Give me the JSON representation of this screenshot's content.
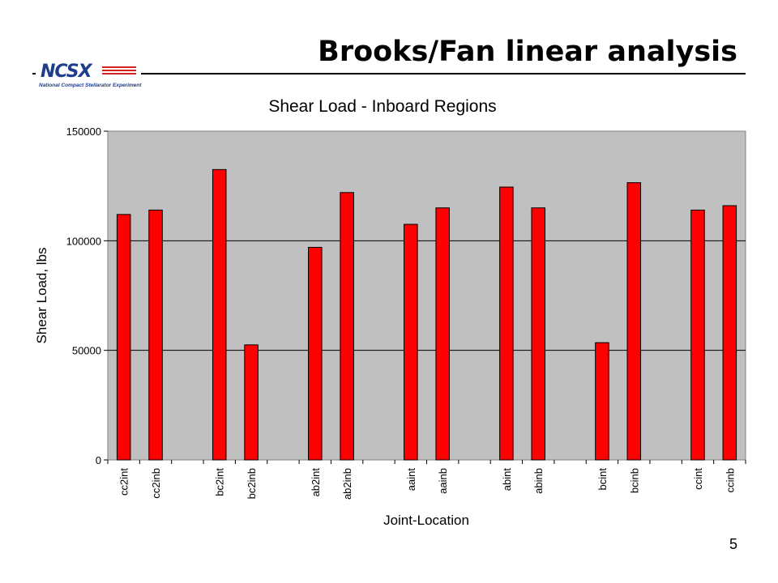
{
  "slide": {
    "title": "Brooks/Fan linear analysis",
    "page_number": "5"
  },
  "logo": {
    "text": "NCSX",
    "subtitle": "National Compact Stellarator Experiment",
    "accent_color": "#d42020",
    "text_color": "#1f3d8c"
  },
  "chart_data": {
    "type": "bar",
    "title": "Shear Load - Inboard Regions",
    "xlabel": "Joint-Location",
    "ylabel": "Shear Load, lbs",
    "ylim": [
      0,
      150000
    ],
    "yticks": [
      0,
      50000,
      100000,
      150000
    ],
    "grid": true,
    "legend": "none",
    "plot_background": "#c0c0c0",
    "bar_color": "#ff0000",
    "categories": [
      "cc2int",
      "cc2inb",
      "",
      "bc2int",
      "bc2inb",
      "",
      "ab2int",
      "ab2inb",
      "",
      "aaint",
      "aainb",
      "",
      "abint",
      "abinb",
      "",
      "bcint",
      "bcinb",
      "",
      "ccint",
      "ccinb"
    ],
    "values": [
      112000,
      114000,
      null,
      132500,
      52500,
      null,
      97000,
      122000,
      null,
      107500,
      115000,
      null,
      124500,
      115000,
      null,
      53500,
      126500,
      null,
      114000,
      116000
    ]
  }
}
